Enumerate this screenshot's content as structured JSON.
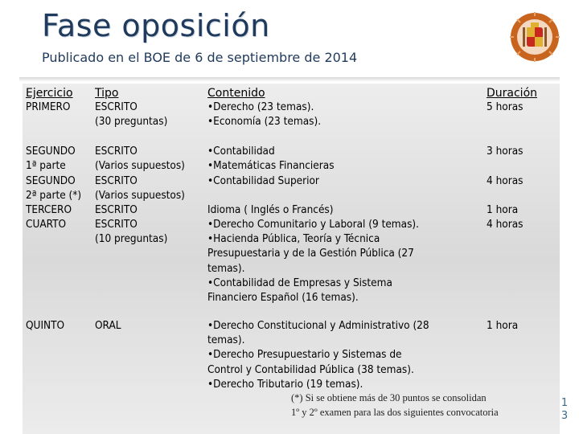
{
  "header": {
    "title": "Fase oposición",
    "subtitle": "Publicado en el BOE de 6 de septiembre de 2014",
    "logo_icon": "coat-of-arms-seal"
  },
  "table": {
    "headers": {
      "ejercicio": "Ejercicio",
      "tipo": "Tipo",
      "contenido": "Contenido",
      "duracion": "Duración"
    },
    "rows": [
      {
        "ejercicio": "PRIMERO",
        "tipo": "ESCRITO\n(30 preguntas)",
        "contenido": "•Derecho (23 temas).\n•Economía (23 temas).",
        "duracion": "5 horas"
      },
      {
        "ejercicio": "SEGUNDO\n1ª parte",
        "tipo": "ESCRITO\n(Varios supuestos)",
        "contenido": "•Contabilidad\n•Matemáticas Financieras",
        "duracion": "3 horas"
      },
      {
        "ejercicio": "SEGUNDO\n2ª parte (*)",
        "tipo": "ESCRITO\n(Varios supuestos)",
        "contenido": "•Contabilidad Superior",
        "duracion": "4 horas"
      },
      {
        "ejercicio": "TERCERO",
        "tipo": "ESCRITO",
        "contenido": "Idioma ( Inglés o Francés)",
        "duracion": "1 hora"
      },
      {
        "ejercicio": "CUARTO",
        "tipo": "ESCRITO\n(10 preguntas)",
        "contenido": "•Derecho Comunitario y Laboral (9 temas).\n•Hacienda Pública, Teoría y Técnica\nPresupuestaria y de la Gestión Pública (27\ntemas).\n•Contabilidad de Empresas y Sistema\nFinanciero Español (16 temas).",
        "duracion": "4 horas"
      },
      {
        "ejercicio": "QUINTO",
        "tipo": "ORAL",
        "contenido": "•Derecho Constitucional y Administrativo (28\ntemas).\n•Derecho Presupuestario y Sistemas de\nControl y Contabilidad Pública (38 temas).\n•Derecho Tributario (19 temas).",
        "duracion": "1 hora"
      }
    ]
  },
  "footnote": "(*) Si se obtiene más de 30 puntos se consolidan\n1º y  2º  examen para las dos siguientes convocatoria",
  "page_number": "1\n3"
}
